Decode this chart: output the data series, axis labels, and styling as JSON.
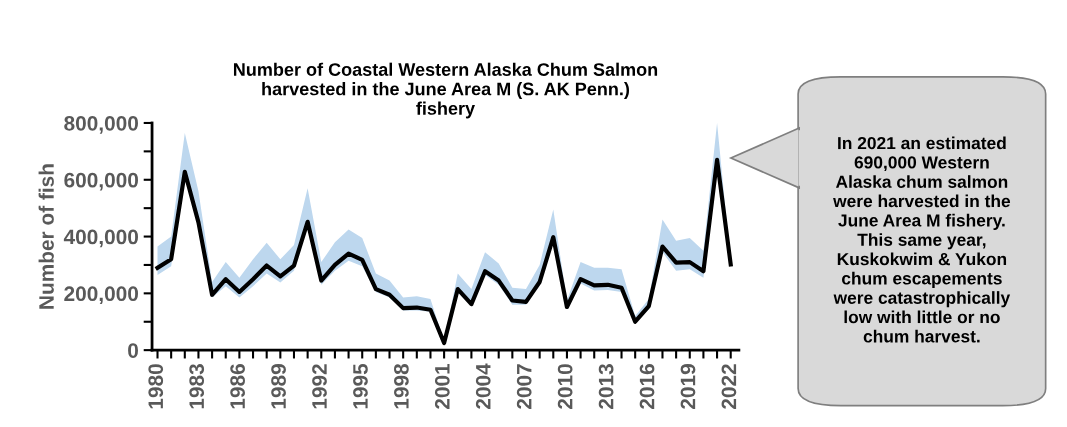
{
  "chart_data": {
    "type": "line",
    "title": "Number of Coastal Western Alaska Chum Salmon\nharvested in the June Area M (S. AK Penn.)\nfishery",
    "ylabel": "Number of fish",
    "x": [
      1980,
      1981,
      1982,
      1983,
      1984,
      1985,
      1986,
      1987,
      1988,
      1989,
      1990,
      1991,
      1992,
      1993,
      1994,
      1995,
      1996,
      1997,
      1998,
      1999,
      2000,
      2001,
      2002,
      2003,
      2004,
      2005,
      2006,
      2007,
      2008,
      2009,
      2010,
      2011,
      2012,
      2013,
      2014,
      2015,
      2016,
      2017,
      2018,
      2019,
      2020,
      2021,
      2022
    ],
    "series": [
      {
        "color": "#000000",
        "values": [
          290000,
          320000,
          628000,
          450000,
          195000,
          250000,
          205000,
          250000,
          298000,
          260000,
          298000,
          452000,
          245000,
          300000,
          340000,
          318000,
          215000,
          195000,
          148000,
          150000,
          142000,
          25000,
          215000,
          162000,
          278000,
          245000,
          175000,
          170000,
          240000,
          398000,
          152000,
          250000,
          228000,
          230000,
          220000,
          100000,
          155000,
          365000,
          308000,
          310000,
          278000,
          670000,
          302000
        ],
        "lower": [
          265000,
          295000,
          620000,
          440000,
          185000,
          225000,
          185000,
          225000,
          270000,
          238000,
          280000,
          440000,
          230000,
          280000,
          315000,
          295000,
          205000,
          185000,
          140000,
          140000,
          135000,
          20000,
          205000,
          155000,
          265000,
          230000,
          160000,
          160000,
          230000,
          385000,
          145000,
          235000,
          210000,
          212000,
          205000,
          95000,
          145000,
          345000,
          280000,
          285000,
          255000,
          660000,
          295000
        ],
        "upper": [
          365000,
          400000,
          765000,
          560000,
          240000,
          310000,
          255000,
          320000,
          378000,
          320000,
          370000,
          570000,
          310000,
          380000,
          425000,
          395000,
          270000,
          245000,
          185000,
          190000,
          180000,
          30000,
          270000,
          215000,
          345000,
          305000,
          220000,
          215000,
          300000,
          495000,
          175000,
          310000,
          290000,
          290000,
          285000,
          120000,
          180000,
          460000,
          385000,
          395000,
          350000,
          800000,
          310000
        ]
      }
    ],
    "xlim": [
      1979.6,
      2022.6
    ],
    "xticks": [
      1980,
      {
        "value": 1981,
        "label": null
      },
      {
        "value": 1982,
        "label": null
      },
      1983,
      {
        "value": 1984,
        "label": null
      },
      {
        "value": 1985,
        "label": null
      },
      1986,
      {
        "value": 1987,
        "label": null
      },
      {
        "value": 1988,
        "label": null
      },
      1989,
      {
        "value": 1990,
        "label": null
      },
      {
        "value": 1991,
        "label": null
      },
      1992,
      {
        "value": 1993,
        "label": null
      },
      {
        "value": 1994,
        "label": null
      },
      1995,
      {
        "value": 1996,
        "label": null
      },
      {
        "value": 1997,
        "label": null
      },
      1998,
      {
        "value": 1999,
        "label": null
      },
      {
        "value": 2000,
        "label": null
      },
      2001,
      {
        "value": 2002,
        "label": null
      },
      {
        "value": 2003,
        "label": null
      },
      2004,
      {
        "value": 2005,
        "label": null
      },
      {
        "value": 2006,
        "label": null
      },
      2007,
      {
        "value": 2008,
        "label": null
      },
      {
        "value": 2009,
        "label": null
      },
      2010,
      {
        "value": 2011,
        "label": null
      },
      {
        "value": 2012,
        "label": null
      },
      2013,
      {
        "value": 2014,
        "label": null
      },
      {
        "value": 2015,
        "label": null
      },
      2016,
      {
        "value": 2017,
        "label": null
      },
      {
        "value": 2018,
        "label": null
      },
      2019,
      {
        "value": 2020,
        "label": null
      },
      {
        "value": 2021,
        "label": null
      },
      2022
    ],
    "ylim": [
      0,
      800000
    ],
    "yticks": [
      {
        "value": 0,
        "label": "0"
      },
      {
        "value": 100000,
        "label": null
      },
      {
        "value": 200000,
        "label": "200,000"
      },
      {
        "value": 300000,
        "label": null
      },
      {
        "value": 400000,
        "label": "400,000"
      },
      {
        "value": 500000,
        "label": null
      },
      {
        "value": 600000,
        "label": "600,000"
      },
      {
        "value": 700000,
        "label": null
      },
      {
        "value": 800000,
        "label": "800,000"
      }
    ],
    "grid": false,
    "legend": false,
    "marker": "none",
    "line_style": "solid",
    "annotations": [
      "In 2021 an estimated\n690,000 Western\nAlaska chum salmon\nwere harvested in the\nJune Area M fishery.\nThis same year,\nKuskokwim & Yukon\nchum escapements\nwere catastrophically\nlow with little or no\nchum harvest."
    ]
  }
}
